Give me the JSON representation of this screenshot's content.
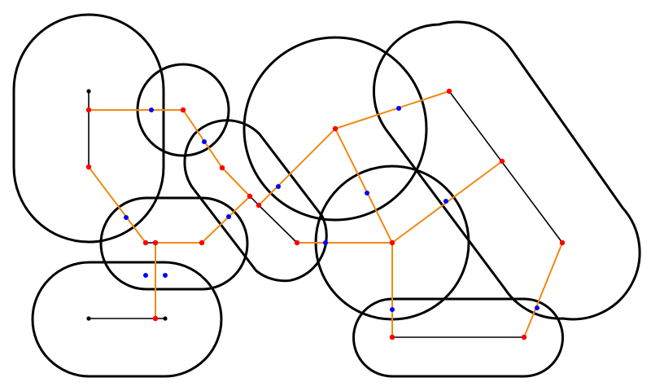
{
  "colors": {
    "background": "#ffffff",
    "region_outline": "#000000",
    "internal_edge": "#000000",
    "tree_edge": "#f08a10",
    "tree_node": "#ff0000",
    "region_marker": "#0000ff",
    "endpoint": "#000000"
  },
  "regions": [
    {
      "id": "stadium-left-vertical",
      "shape": "stadium"
    },
    {
      "id": "circle-small-top",
      "shape": "circle"
    },
    {
      "id": "stadium-diagonal-middle",
      "shape": "stadium"
    },
    {
      "id": "circle-large-center",
      "shape": "circle"
    },
    {
      "id": "stadium-diagonal-right",
      "shape": "stadium"
    },
    {
      "id": "stadium-horizontal-mid-left",
      "shape": "stadium"
    },
    {
      "id": "stadium-horizontal-bottom-left",
      "shape": "stadium"
    },
    {
      "id": "circle-medium-right",
      "shape": "circle"
    },
    {
      "id": "stadium-horizontal-bottom-right",
      "shape": "stadium"
    }
  ],
  "node_count": {
    "red": 19,
    "blue": 14,
    "black": 3
  }
}
